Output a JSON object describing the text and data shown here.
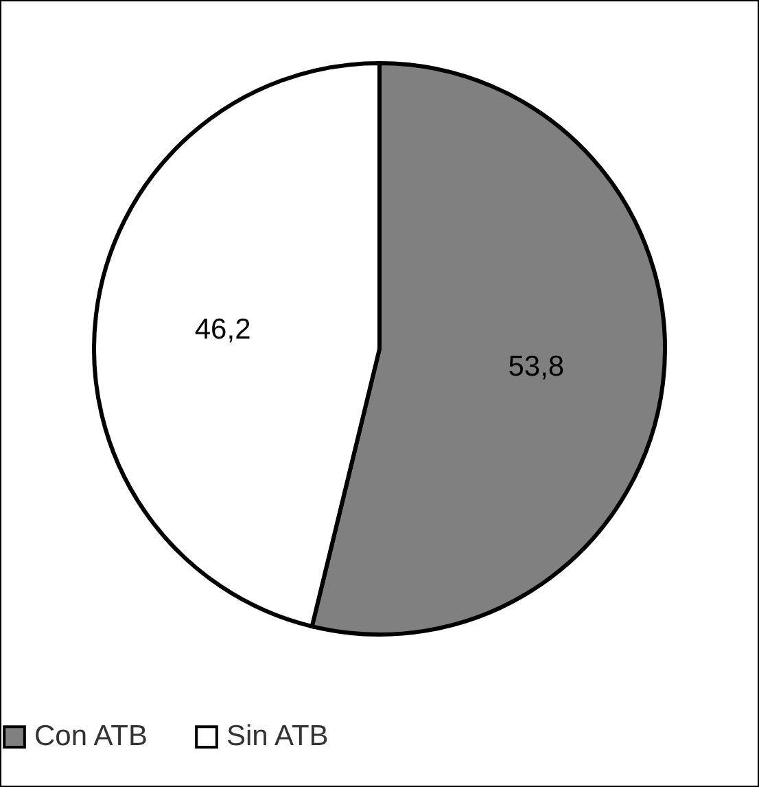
{
  "chart_data": {
    "type": "pie",
    "categories": [
      "Con ATB",
      "Sin ATB"
    ],
    "values": [
      53.8,
      46.2
    ],
    "colors": [
      "#808080",
      "#ffffff"
    ],
    "value_labels": [
      "53,8",
      "46,2"
    ],
    "legend": "bottom"
  }
}
